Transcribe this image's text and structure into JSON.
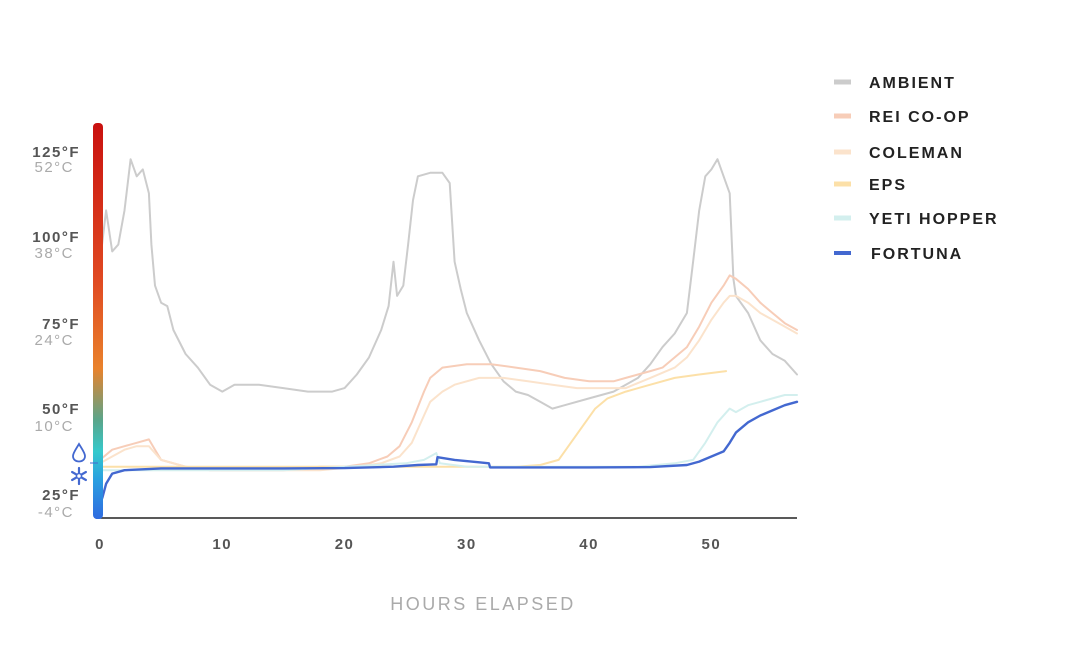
{
  "chart_data": {
    "type": "line",
    "xlabel": "HOURS ELAPSED",
    "ylabel": "",
    "xlim": [
      0,
      57
    ],
    "ylim": [
      20,
      135
    ],
    "x_ticks": [
      "0",
      "10",
      "20",
      "30",
      "40",
      "50"
    ],
    "y_ticks": [
      {
        "f": "125°F",
        "c": "52°C"
      },
      {
        "f": "100°F",
        "c": "38°C"
      },
      {
        "f": "75°F",
        "c": "24°C"
      },
      {
        "f": "50°F",
        "c": "10°C"
      },
      {
        "f": "25°F",
        "c": "-4°C"
      }
    ],
    "legend_position": "right",
    "series": [
      {
        "name": "AMBIENT",
        "color": "#cccccc",
        "points": [
          [
            0,
            95
          ],
          [
            0.5,
            110
          ],
          [
            1,
            98
          ],
          [
            1.5,
            100
          ],
          [
            2,
            110
          ],
          [
            2.5,
            125
          ],
          [
            3,
            120
          ],
          [
            3.5,
            122
          ],
          [
            4,
            115
          ],
          [
            4.2,
            100
          ],
          [
            4.5,
            88
          ],
          [
            5,
            83
          ],
          [
            5.5,
            82
          ],
          [
            6,
            75
          ],
          [
            7,
            68
          ],
          [
            8,
            64
          ],
          [
            9,
            59
          ],
          [
            10,
            57
          ],
          [
            11,
            59
          ],
          [
            13,
            59
          ],
          [
            15,
            58
          ],
          [
            17,
            57
          ],
          [
            19,
            57
          ],
          [
            20,
            58
          ],
          [
            21,
            62
          ],
          [
            22,
            67
          ],
          [
            23,
            75
          ],
          [
            23.6,
            82
          ],
          [
            24,
            95
          ],
          [
            24.3,
            85
          ],
          [
            24.8,
            88
          ],
          [
            25.2,
            100
          ],
          [
            25.6,
            113
          ],
          [
            26,
            120
          ],
          [
            27,
            121
          ],
          [
            28,
            121
          ],
          [
            28.6,
            118
          ],
          [
            29,
            95
          ],
          [
            29.5,
            87
          ],
          [
            30,
            80
          ],
          [
            31,
            72
          ],
          [
            32,
            65
          ],
          [
            33,
            60
          ],
          [
            34,
            57
          ],
          [
            35,
            56
          ],
          [
            36,
            54
          ],
          [
            37,
            52
          ],
          [
            38,
            53
          ],
          [
            40,
            55
          ],
          [
            42,
            57
          ],
          [
            44,
            61
          ],
          [
            45,
            65
          ],
          [
            46,
            70
          ],
          [
            47,
            74
          ],
          [
            48,
            80
          ],
          [
            48.5,
            95
          ],
          [
            49,
            110
          ],
          [
            49.5,
            120
          ],
          [
            50,
            122
          ],
          [
            50.5,
            125
          ],
          [
            51,
            120
          ],
          [
            51.5,
            115
          ],
          [
            51.8,
            90
          ],
          [
            52,
            85
          ],
          [
            53,
            80
          ],
          [
            54,
            72
          ],
          [
            55,
            68
          ],
          [
            56,
            66
          ],
          [
            57,
            62
          ]
        ]
      },
      {
        "name": "REI CO-OP",
        "color": "#f7cdb8",
        "points": [
          [
            0,
            37
          ],
          [
            1,
            40
          ],
          [
            2,
            41
          ],
          [
            3,
            42
          ],
          [
            4,
            43
          ],
          [
            4.5,
            40
          ],
          [
            5,
            37
          ],
          [
            7,
            35
          ],
          [
            9,
            34
          ],
          [
            12,
            34
          ],
          [
            15,
            34
          ],
          [
            18,
            35
          ],
          [
            20,
            35
          ],
          [
            22,
            36
          ],
          [
            23.5,
            38
          ],
          [
            24.5,
            41
          ],
          [
            25.5,
            48
          ],
          [
            26.5,
            57
          ],
          [
            27,
            61
          ],
          [
            28,
            64
          ],
          [
            30,
            65
          ],
          [
            32,
            65
          ],
          [
            34,
            64
          ],
          [
            36,
            63
          ],
          [
            38,
            61
          ],
          [
            40,
            60
          ],
          [
            42,
            60
          ],
          [
            43,
            61
          ],
          [
            45,
            63
          ],
          [
            46,
            64
          ],
          [
            47,
            67
          ],
          [
            48,
            70
          ],
          [
            49,
            76
          ],
          [
            50,
            83
          ],
          [
            51,
            88
          ],
          [
            51.5,
            91
          ],
          [
            52,
            90
          ],
          [
            53,
            87
          ],
          [
            54,
            83
          ],
          [
            55,
            80
          ],
          [
            56,
            77
          ],
          [
            57,
            75
          ]
        ]
      },
      {
        "name": "COLEMAN",
        "color": "#fbe3cc",
        "points": [
          [
            0,
            36
          ],
          [
            1,
            38
          ],
          [
            2,
            40
          ],
          [
            3,
            41
          ],
          [
            4,
            41
          ],
          [
            4.5,
            39
          ],
          [
            5,
            37
          ],
          [
            7,
            35
          ],
          [
            10,
            34
          ],
          [
            14,
            34
          ],
          [
            18,
            34
          ],
          [
            21,
            35
          ],
          [
            23,
            36
          ],
          [
            24.5,
            38
          ],
          [
            25.5,
            42
          ],
          [
            26.5,
            50
          ],
          [
            27,
            54
          ],
          [
            28,
            57
          ],
          [
            29,
            59
          ],
          [
            31,
            61
          ],
          [
            33,
            61
          ],
          [
            35,
            60
          ],
          [
            37,
            59
          ],
          [
            39,
            58
          ],
          [
            41,
            58
          ],
          [
            43,
            58
          ],
          [
            45,
            61
          ],
          [
            47,
            64
          ],
          [
            48,
            67
          ],
          [
            49,
            72
          ],
          [
            50,
            78
          ],
          [
            51,
            83
          ],
          [
            51.5,
            85
          ],
          [
            52,
            85
          ],
          [
            53,
            83
          ],
          [
            54,
            80
          ],
          [
            55,
            78
          ],
          [
            56,
            76
          ],
          [
            57,
            74
          ]
        ]
      },
      {
        "name": "EPS",
        "color": "#fce0a8",
        "points": [
          [
            0,
            35
          ],
          [
            2,
            35
          ],
          [
            5,
            35
          ],
          [
            10,
            35
          ],
          [
            15,
            35
          ],
          [
            20,
            35
          ],
          [
            25,
            35
          ],
          [
            30,
            35
          ],
          [
            34,
            35
          ],
          [
            36,
            35.5
          ],
          [
            37.5,
            37
          ],
          [
            38.5,
            42
          ],
          [
            39.5,
            47
          ],
          [
            40.5,
            52
          ],
          [
            41.5,
            55
          ],
          [
            43,
            57
          ],
          [
            45,
            59
          ],
          [
            47,
            61
          ],
          [
            49,
            62
          ],
          [
            51.2,
            63
          ]
        ]
      },
      {
        "name": "YETI HOPPER",
        "color": "#d3efee",
        "points": [
          [
            0,
            34
          ],
          [
            5,
            34
          ],
          [
            10,
            34
          ],
          [
            15,
            34
          ],
          [
            20,
            35
          ],
          [
            25,
            36
          ],
          [
            26.5,
            37
          ],
          [
            27.5,
            39
          ],
          [
            27.8,
            36
          ],
          [
            30,
            35
          ],
          [
            35,
            35
          ],
          [
            40,
            35
          ],
          [
            44,
            35
          ],
          [
            47,
            36
          ],
          [
            48.5,
            37
          ],
          [
            49.5,
            42
          ],
          [
            50.5,
            48
          ],
          [
            51.5,
            52
          ],
          [
            52,
            51
          ],
          [
            53,
            53
          ],
          [
            54,
            54
          ],
          [
            55,
            55
          ],
          [
            56,
            56
          ],
          [
            57,
            56
          ]
        ]
      },
      {
        "name": "FORTUNA",
        "color": "#4368d0",
        "points": [
          [
            0,
            24
          ],
          [
            0.2,
            26
          ],
          [
            0.5,
            30
          ],
          [
            1,
            33
          ],
          [
            2,
            34
          ],
          [
            5,
            34.5
          ],
          [
            10,
            34.5
          ],
          [
            15,
            34.5
          ],
          [
            20,
            34.6
          ],
          [
            24,
            35
          ],
          [
            26,
            35.5
          ],
          [
            27.5,
            35.7
          ],
          [
            27.6,
            37.8
          ],
          [
            29,
            37
          ],
          [
            31,
            36.3
          ],
          [
            31.8,
            36
          ],
          [
            31.9,
            34.8
          ],
          [
            35,
            34.8
          ],
          [
            40,
            34.8
          ],
          [
            45,
            34.9
          ],
          [
            48,
            35.5
          ],
          [
            49,
            36.5
          ],
          [
            50,
            38
          ],
          [
            51,
            39.5
          ],
          [
            51.5,
            42
          ],
          [
            52,
            45
          ],
          [
            53,
            48
          ],
          [
            54,
            50
          ],
          [
            55,
            51.5
          ],
          [
            56,
            53
          ],
          [
            57,
            54
          ]
        ]
      }
    ]
  }
}
